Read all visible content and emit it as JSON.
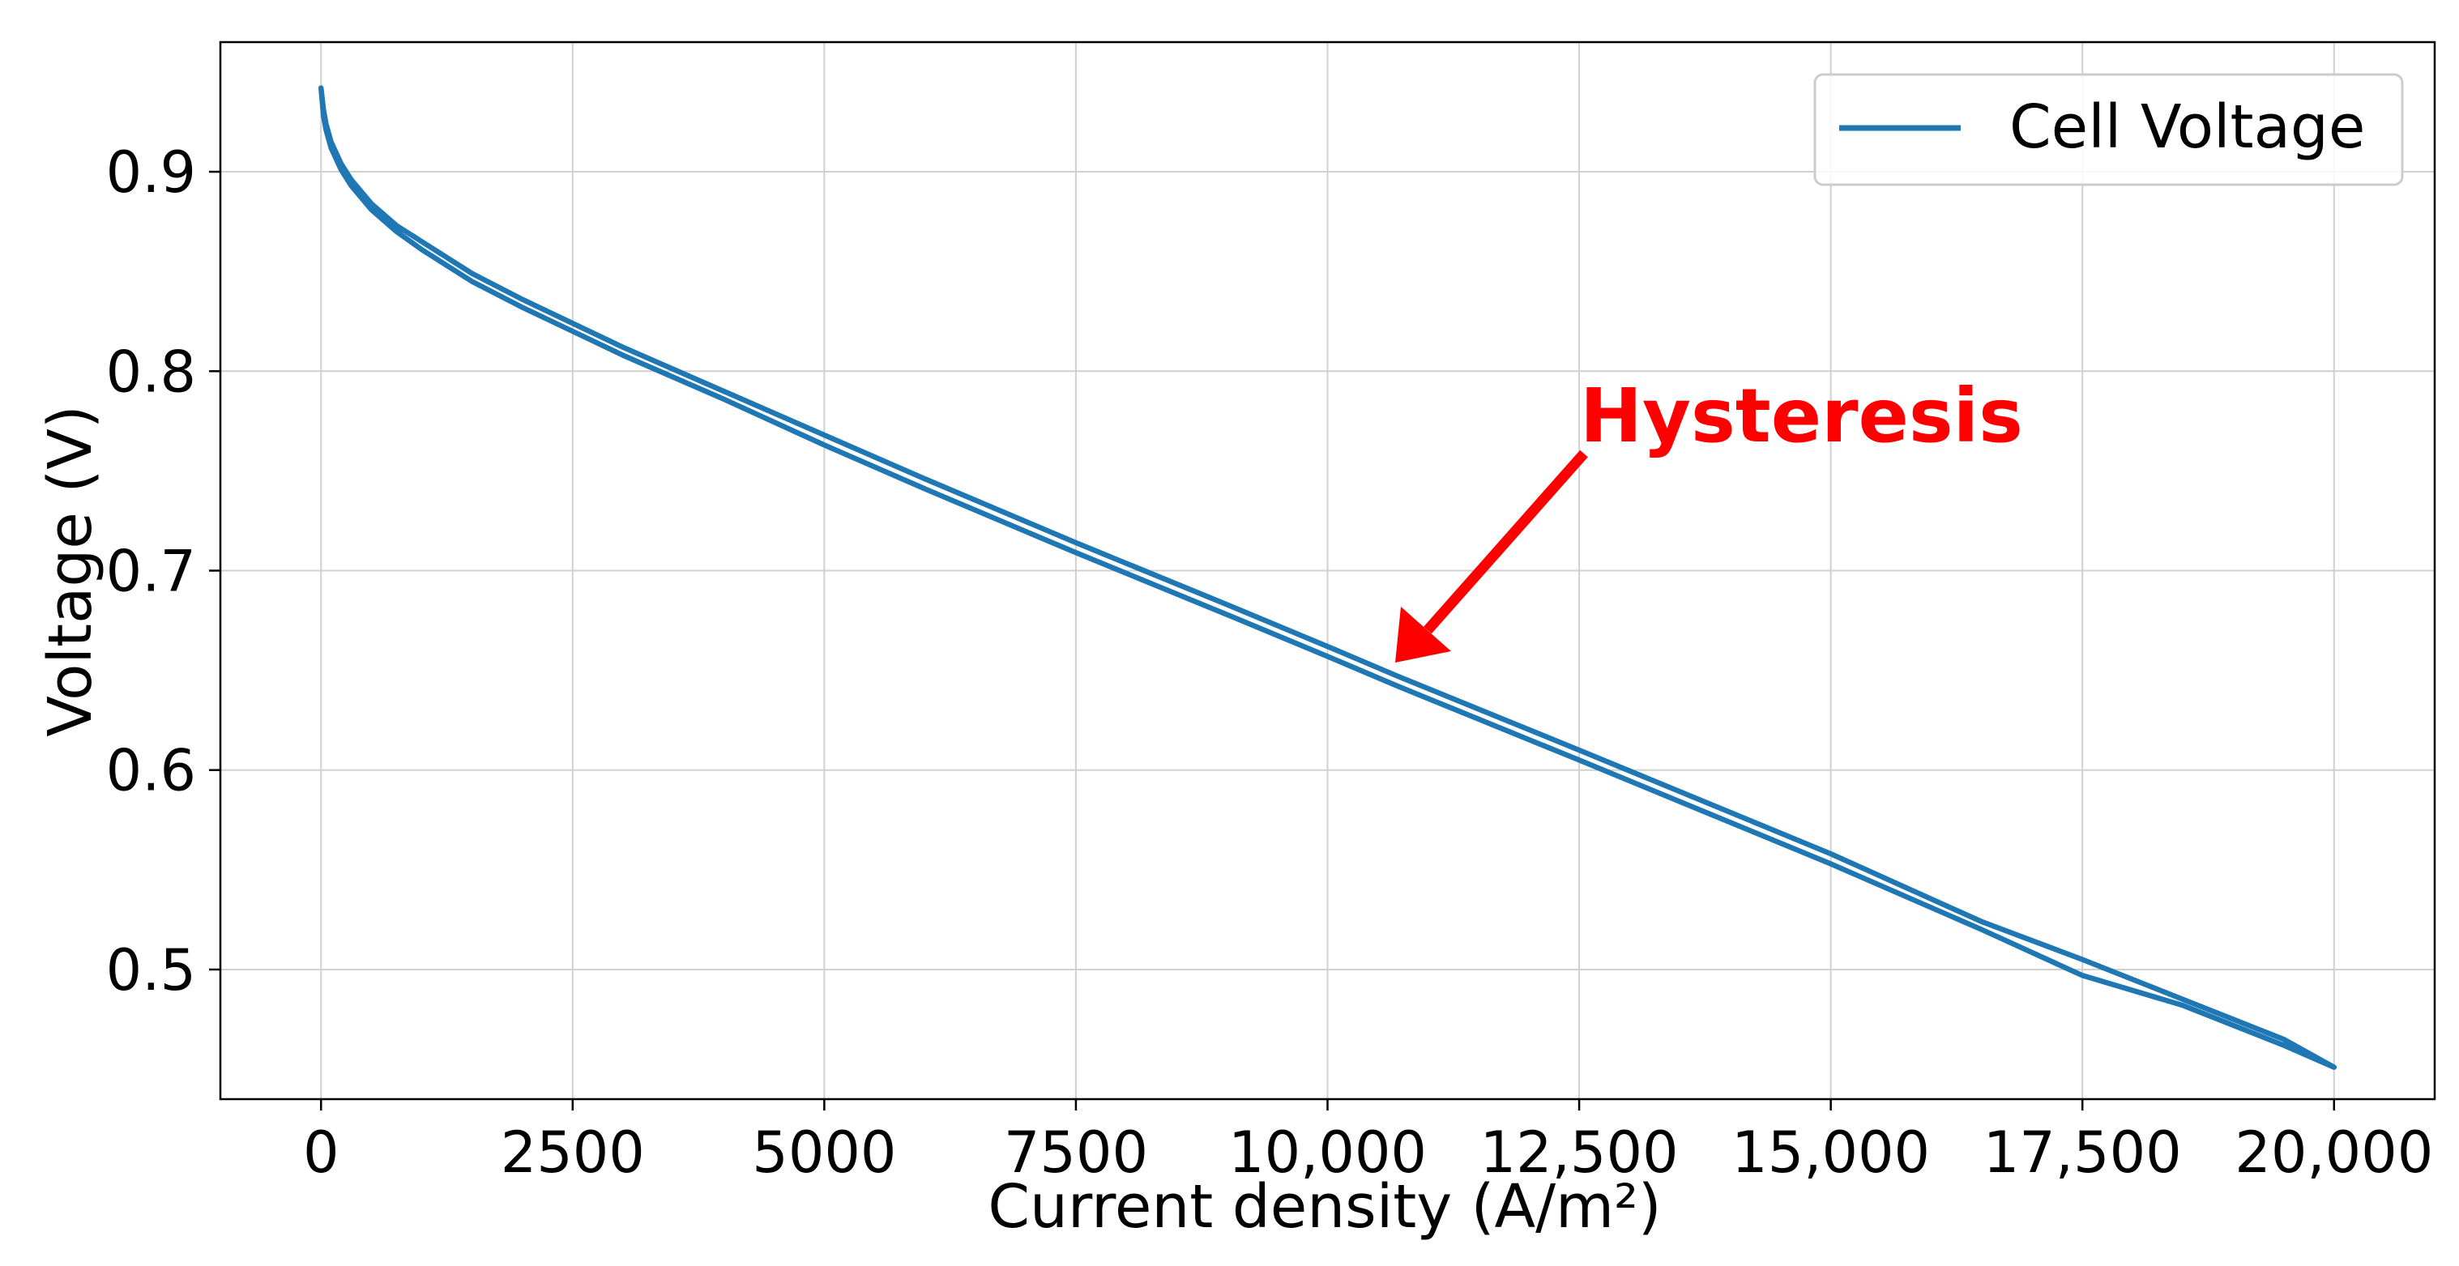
{
  "chart_data": {
    "type": "line",
    "title": "",
    "xlabel": "Current density (A/m²)",
    "ylabel": "Voltage (V)",
    "xlim": [
      -1000,
      21000
    ],
    "ylim": [
      0.435,
      0.965
    ],
    "grid": true,
    "legend_position": "top-right",
    "x_ticks": [
      {
        "value": 0,
        "label": "0"
      },
      {
        "value": 2500,
        "label": "2500"
      },
      {
        "value": 5000,
        "label": "5000"
      },
      {
        "value": 7500,
        "label": "7500"
      },
      {
        "value": 10000,
        "label": "10,000"
      },
      {
        "value": 12500,
        "label": "12,500"
      },
      {
        "value": 15000,
        "label": "15,000"
      },
      {
        "value": 17500,
        "label": "17,500"
      },
      {
        "value": 20000,
        "label": "20,000"
      }
    ],
    "y_ticks": [
      {
        "value": 0.5,
        "label": "0.5"
      },
      {
        "value": 0.6,
        "label": "0.6"
      },
      {
        "value": 0.7,
        "label": "0.7"
      },
      {
        "value": 0.8,
        "label": "0.8"
      },
      {
        "value": 0.9,
        "label": "0.9"
      }
    ],
    "series": [
      {
        "name": "Cell Voltage",
        "color": "#1f77b4",
        "x": [
          0,
          25,
          50,
          100,
          200,
          300,
          500,
          750,
          1000,
          1500,
          2000,
          2500,
          3000,
          4000,
          5000,
          6000,
          7500,
          9000,
          10000,
          10700,
          12500,
          15000,
          16500,
          17500,
          18500,
          19500,
          20000,
          19500,
          18500,
          17500,
          16500,
          15000,
          12500,
          10700,
          10000,
          9000,
          7500,
          6000,
          5000,
          4000,
          3000,
          2500,
          2000,
          1500,
          1000,
          750,
          500,
          300,
          200,
          100,
          50,
          25,
          0
        ],
        "y": [
          0.942,
          0.928,
          0.921,
          0.912,
          0.901,
          0.893,
          0.881,
          0.87,
          0.861,
          0.845,
          0.832,
          0.82,
          0.808,
          0.786,
          0.763,
          0.741,
          0.709,
          0.678,
          0.657,
          0.642,
          0.605,
          0.553,
          0.52,
          0.497,
          0.482,
          0.462,
          0.451,
          0.465,
          0.485,
          0.505,
          0.524,
          0.558,
          0.61,
          0.647,
          0.662,
          0.683,
          0.714,
          0.746,
          0.768,
          0.79,
          0.812,
          0.824,
          0.836,
          0.849,
          0.865,
          0.873,
          0.884,
          0.896,
          0.904,
          0.915,
          0.924,
          0.931,
          0.942
        ]
      }
    ],
    "annotations": [
      {
        "text": "Hysteresis",
        "color": "#ff0000",
        "arrow_to": {
          "x": 10700,
          "y": 0.647
        }
      }
    ]
  }
}
